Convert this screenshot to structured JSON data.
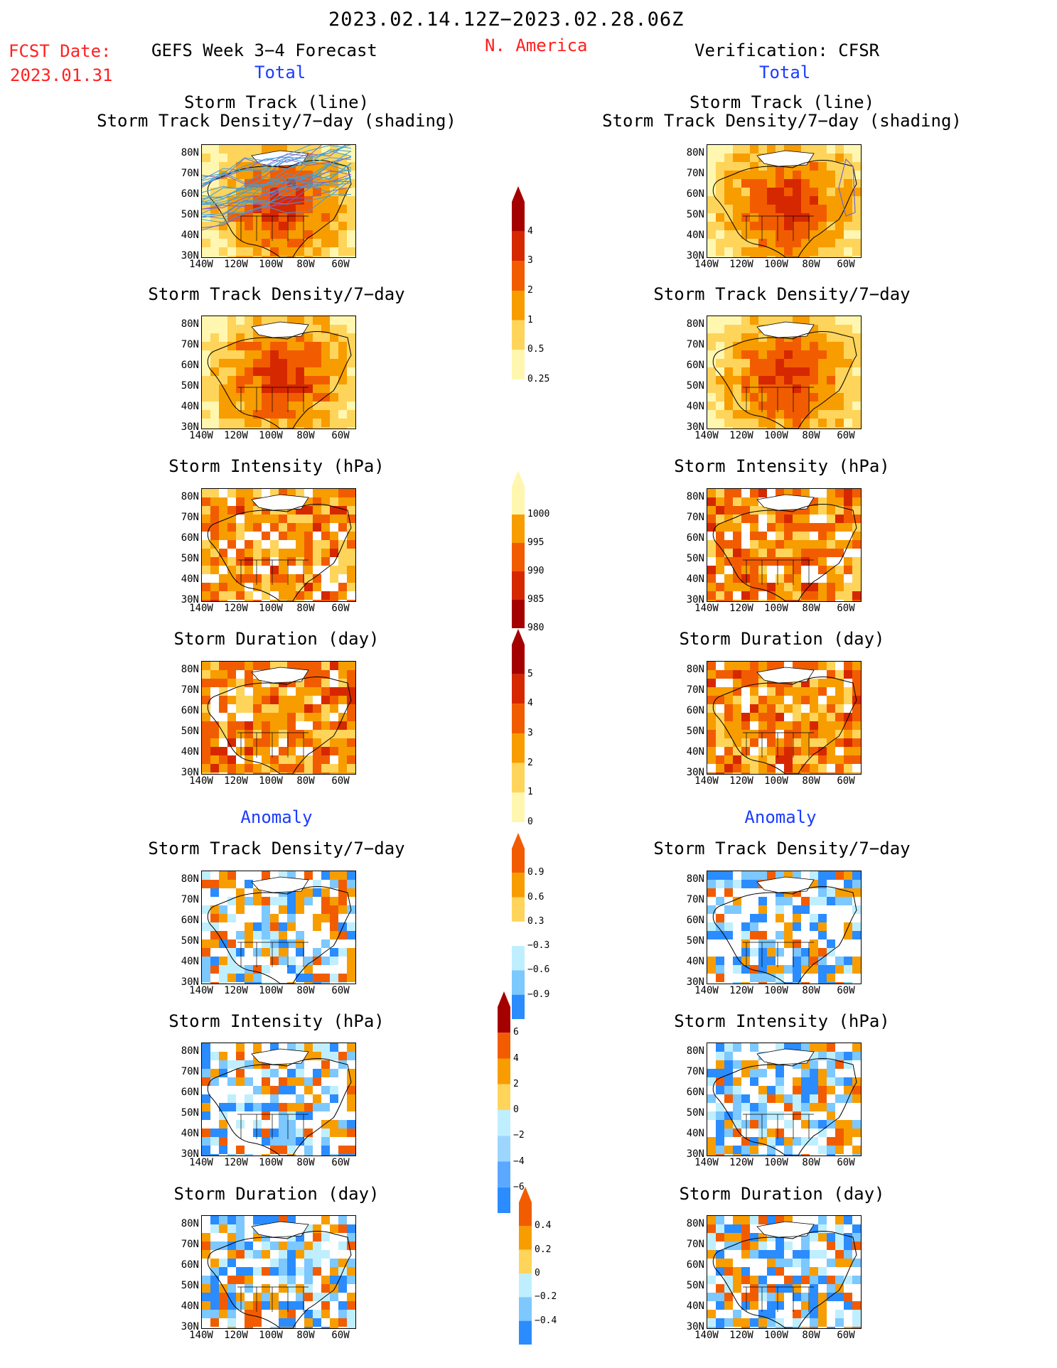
{
  "header": {
    "date_range": "2023.02.14.12Z−2023.02.28.06Z",
    "fcst_label": "FCST Date:",
    "fcst_date": "2023.01.31",
    "forecast_title": "GEFS Week 3−4 Forecast",
    "region": "N. America",
    "verification": "Verification: CFSR",
    "total_left": "Total",
    "total_right": "Total",
    "anomaly_left": "Anomaly",
    "anomaly_right": "Anomaly"
  },
  "panel_titles": {
    "track_line": "Storm Track (line)",
    "track_shading": "Storm Track Density/7−day (shading)",
    "density": "Storm Track Density/7−day",
    "intensity": "Storm Intensity (hPa)",
    "duration": "Storm Duration (day)"
  },
  "lat_labels": [
    "80N",
    "70N",
    "60N",
    "50N",
    "40N",
    "30N"
  ],
  "lon_labels": [
    "140W",
    "120W",
    "100W",
    "80W",
    "60W"
  ],
  "colorbars": {
    "density": {
      "labels": [
        "4",
        "3",
        "2",
        "1",
        "0.5",
        "0.25"
      ],
      "colors": [
        "#a50000",
        "#d62800",
        "#f25c00",
        "#f79d00",
        "#ffd45a",
        "#fff7b0"
      ]
    },
    "intensity": {
      "labels": [
        "1000",
        "995",
        "990",
        "985",
        "980"
      ],
      "colors": [
        "#fff7b0",
        "#f79d00",
        "#f25c00",
        "#d62800",
        "#a50000"
      ]
    },
    "duration": {
      "labels": [
        "5",
        "4",
        "3",
        "2",
        "1",
        "0"
      ],
      "colors": [
        "#a50000",
        "#d62800",
        "#f25c00",
        "#f79d00",
        "#ffd45a",
        "#fff7b0"
      ]
    },
    "anom_density": {
      "labels": [
        "0.9",
        "0.6",
        "0.3",
        "−0.3",
        "−0.6",
        "−0.9"
      ],
      "colors": [
        "#f25c00",
        "#f79d00",
        "#ffd45a",
        "#ffffff",
        "#bfefff",
        "#7cc8ff",
        "#2a8cff"
      ]
    },
    "anom_intensity": {
      "labels": [
        "6",
        "4",
        "2",
        "0",
        "−2",
        "−4",
        "−6"
      ],
      "colors": [
        "#a50000",
        "#f25c00",
        "#f79d00",
        "#ffd45a",
        "#bfefff",
        "#9cd6ff",
        "#5aa8ff",
        "#2a8cff"
      ]
    },
    "anom_duration": {
      "labels": [
        "0.4",
        "0.2",
        "0",
        "−0.2",
        "−0.4"
      ],
      "colors": [
        "#f25c00",
        "#f79d00",
        "#ffd45a",
        "#bfefff",
        "#7cc8ff",
        "#2a8cff"
      ]
    }
  }
}
